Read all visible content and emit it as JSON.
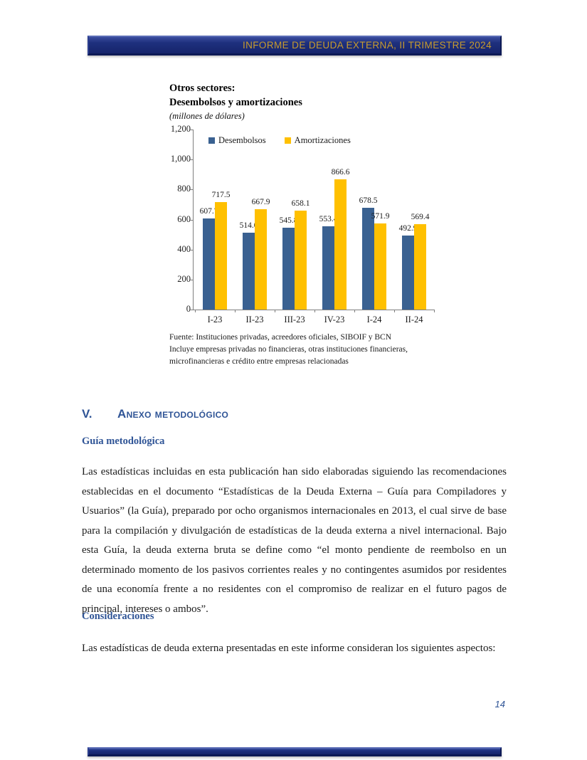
{
  "header": {
    "title": "INFORME DE DEUDA EXTERNA, II TRIMESTRE 2024"
  },
  "chart": {
    "title_line1": "Otros sectores:",
    "title_line2": "Desembolsos y amortizaciones",
    "unit_note": "(millones de dólares)",
    "source_line1": "Fuente:  Instituciones privadas, acreedores oficiales, SIBOIF y BCN",
    "source_line2": "Incluye empresas privadas no financieras, otras instituciones financieras,",
    "source_line3": "microfinancieras e crédito entre empresas relacionadas"
  },
  "chart_data": {
    "type": "bar",
    "title": "Otros sectores: Desembolsos y amortizaciones",
    "unit": "millones de dólares",
    "categories": [
      "I-23",
      "II-23",
      "III-23",
      "IV-23",
      "I-24",
      "II-24"
    ],
    "series": [
      {
        "name": "Desembolsos",
        "color": "#3a6191",
        "values": [
          607.7,
          514.0,
          545.8,
          553.4,
          678.5,
          492.9
        ]
      },
      {
        "name": "Amortizaciones",
        "color": "#ffc000",
        "values": [
          717.5,
          667.9,
          658.1,
          866.6,
          571.9,
          569.4
        ]
      }
    ],
    "ylim": [
      0,
      1200
    ],
    "ytick_interval": 200,
    "ytick_labels": [
      "0",
      "200",
      "400",
      "600",
      "800",
      "1,000",
      "1,200"
    ],
    "legend_position": "top-inside",
    "grid": false,
    "data_labels": true
  },
  "sections": {
    "anexo": {
      "numeral": "V.",
      "title": "Anexo metodológico"
    },
    "guia": {
      "heading": "Guía metodológica",
      "paragraph": "Las estadísticas incluidas en esta publicación han sido elaboradas siguiendo las recomendaciones establecidas en el documento “Estadísticas de la Deuda Externa – Guía para Compiladores y Usuarios” (la Guía), preparado por ocho organismos internacionales en 2013, el cual sirve de base para la compilación y divulgación de estadísticas de la deuda externa a nivel internacional. Bajo esta Guía, la deuda externa bruta se define como “el monto pendiente de reembolso en un determinado momento de los pasivos corrientes reales y no contingentes asumidos por residentes de una economía frente a no residentes con el compromiso de realizar en el futuro pagos de principal, intereses o ambos”."
    },
    "consideraciones": {
      "heading": "Consideraciones",
      "paragraph": "Las estadísticas de deuda externa presentadas en este informe consideran los siguientes aspectos:"
    }
  },
  "footer": {
    "page_number": "14"
  },
  "colors": {
    "banner_navy": "#1e307e",
    "banner_gold_text": "#c79b2f",
    "heading_blue": "#2f5496",
    "bar_blue": "#3a6191",
    "bar_yellow": "#ffc000"
  }
}
